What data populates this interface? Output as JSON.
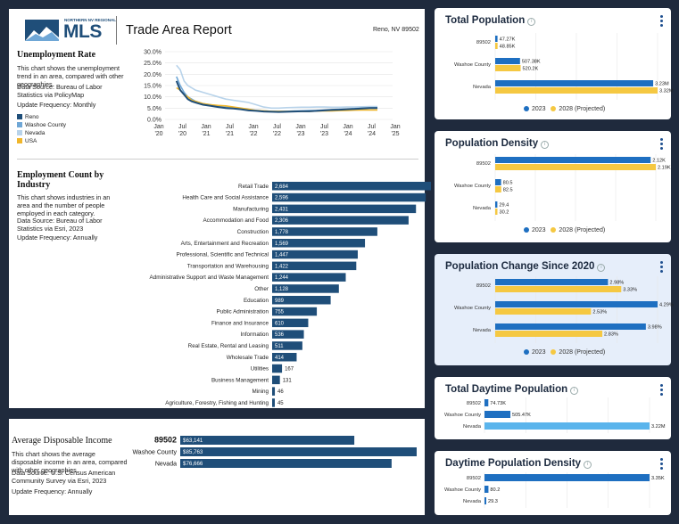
{
  "header": {
    "logo_small": "NORTHERN NV REGIONAL",
    "logo_text": "MLS",
    "title": "Trade Area Report",
    "location": "Reno, NV 89502"
  },
  "unemployment": {
    "title": "Unemployment Rate",
    "desc": "This chart shows the unemployment trend in an area, compared with other geographies.",
    "source": "Data Source: Bureau of Labor Statistics via PolicyMap",
    "freq": "Update Frequency: Monthly",
    "legend": [
      {
        "name": "Reno",
        "color": "#1f4e79"
      },
      {
        "name": "Washoe County",
        "color": "#6fa7d6"
      },
      {
        "name": "Nevada",
        "color": "#b8d3ea"
      },
      {
        "name": "USA",
        "color": "#f0b62b"
      }
    ]
  },
  "employment": {
    "title": "Employment Count by Industry",
    "desc": "This chart shows industries in an area and the number of people employed in each category.",
    "source": "Data Source: Bureau of Labor Statistics via Esri, 2023",
    "freq": "Update Frequency: Annually"
  },
  "income": {
    "title": "Average Disposable Income",
    "desc": "This chart shows the average disposable income in an area, compared with other geographies.",
    "source": "Data Source: U.S. Census American Community Survey via Esri, 2023",
    "freq": "Update Frequency: Annually"
  },
  "cards": {
    "legend_2023": "2023",
    "legend_2028": "2028 (Projected)",
    "total_population_title": "Total Population",
    "population_density_title": "Population Density",
    "population_change_title": "Population Change Since 2020",
    "daytime_population_title": "Total Daytime Population",
    "daytime_density_title": "Daytime Population Density"
  },
  "colors": {
    "dark_blue": "#1f4e79",
    "blue_2023": "#1e6fc1",
    "yellow_2028": "#f5c842",
    "light_blue": "#5ab4ec"
  },
  "chart_data": [
    {
      "id": "unemployment",
      "type": "line",
      "title": "Unemployment Rate",
      "x_ticks": [
        "Jan '20",
        "Jul '20",
        "Jan '21",
        "Jul '21",
        "Jan '22",
        "Jul '22",
        "Jan '23",
        "Jul '23",
        "Jan '24",
        "Jul '24",
        "Jan '25"
      ],
      "y_ticks": [
        "0.0%",
        "5.0%",
        "10.0%",
        "15.0%",
        "20.0%",
        "25.0%",
        "30.0%"
      ],
      "ylim": [
        0,
        30
      ],
      "xlim": [
        0,
        60
      ],
      "series": [
        {
          "name": "Reno",
          "x": [
            3,
            4,
            5,
            6,
            7,
            8,
            9,
            10,
            12,
            14,
            16,
            18,
            20,
            22,
            24,
            26,
            28,
            30,
            32,
            34,
            36,
            38,
            40,
            42,
            44,
            46,
            48,
            50,
            52,
            54,
            56
          ],
          "y": [
            17,
            13,
            11,
            9,
            8,
            7.5,
            7,
            6.5,
            6,
            5.5,
            5,
            4.8,
            4.5,
            4,
            3.8,
            3.5,
            3.4,
            3.3,
            3.4,
            3.5,
            3.6,
            3.6,
            3.8,
            4,
            4.2,
            4.3,
            4.5,
            4.6,
            4.8,
            5,
            5
          ]
        },
        {
          "name": "Washoe County",
          "x": [
            3,
            4,
            5,
            6,
            7,
            8,
            9,
            10,
            12,
            14,
            16,
            18,
            20,
            22,
            24,
            26,
            28,
            30,
            32,
            34,
            36,
            38,
            40,
            42,
            44,
            46,
            48,
            50,
            52,
            54,
            56
          ],
          "y": [
            19,
            15,
            12,
            10,
            9,
            8,
            7.5,
            7,
            6.5,
            6,
            5.5,
            5,
            4.7,
            4.2,
            4,
            3.8,
            3.6,
            3.5,
            3.6,
            3.7,
            3.8,
            3.9,
            4,
            4.2,
            4.4,
            4.5,
            4.6,
            4.8,
            5,
            5.1,
            5.2
          ]
        },
        {
          "name": "Nevada",
          "x": [
            3,
            4,
            5,
            6,
            7,
            8,
            9,
            10,
            12,
            14,
            16,
            18,
            20,
            22,
            24,
            26,
            28,
            30,
            32,
            34,
            36,
            38,
            40,
            42,
            44,
            46,
            48,
            50,
            52,
            54,
            56
          ],
          "y": [
            24,
            22,
            17,
            15,
            14,
            13,
            12.5,
            12,
            11,
            10,
            9,
            8.5,
            8,
            7.5,
            6.5,
            5.5,
            5,
            5,
            5.2,
            5.3,
            5.4,
            5.4,
            5.5,
            5.5,
            5.4,
            5.4,
            5.5,
            5.5,
            5.6,
            5.7,
            5.7
          ]
        },
        {
          "name": "USA",
          "x": [
            3,
            4,
            5,
            6,
            7,
            8,
            9,
            10,
            12,
            14,
            16,
            18,
            20,
            22,
            24,
            26,
            28,
            30,
            32,
            34,
            36,
            38,
            40,
            42,
            44,
            46,
            48,
            50,
            52,
            54,
            56
          ],
          "y": [
            14,
            13,
            11,
            10,
            8.5,
            8,
            7.5,
            7,
            6.5,
            6.2,
            6,
            5.5,
            5,
            4.5,
            4,
            3.8,
            3.6,
            3.6,
            3.5,
            3.5,
            3.6,
            3.6,
            3.7,
            3.8,
            3.8,
            3.9,
            4,
            4.1,
            4.2,
            4.2,
            4.2
          ]
        }
      ]
    },
    {
      "id": "employment",
      "type": "bar",
      "title": "Employment Count by Industry",
      "categories": [
        "Retail Trade",
        "Health Care and Social Assistance",
        "Manufacturing",
        "Accommodation and Food",
        "Construction",
        "Arts, Entertainment and Recreation",
        "Professional, Scientific and Technical",
        "Transportation and Warehousing",
        "Administrative Support and Waste Management",
        "Other",
        "Education",
        "Public Administration",
        "Finance and Insurance",
        "Information",
        "Real Estate, Rental and Leasing",
        "Wholesale Trade",
        "Utilities",
        "Business Management",
        "Mining",
        "Agriculture, Forestry, Fishing and Hunting"
      ],
      "values": [
        2684,
        2596,
        2431,
        2306,
        1778,
        1569,
        1447,
        1422,
        1244,
        1128,
        989,
        755,
        610,
        536,
        511,
        414,
        167,
        131,
        46,
        45
      ],
      "labels": [
        "2,684",
        "2,596",
        "2,431",
        "2,306",
        "1,778",
        "1,569",
        "1,447",
        "1,422",
        "1,244",
        "1,128",
        "989",
        "755",
        "610",
        "536",
        "511",
        "414",
        "167",
        "131",
        "46",
        "45"
      ]
    },
    {
      "id": "income",
      "type": "bar",
      "title": "Average Disposable Income",
      "categories": [
        "89502",
        "Washoe County",
        "Nevada"
      ],
      "values": [
        63141,
        85763,
        76666
      ],
      "labels": [
        "$63,141",
        "$85,763",
        "$76,666"
      ]
    },
    {
      "id": "total_population",
      "type": "bar",
      "title": "Total Population",
      "categories": [
        "89502",
        "Washoe County",
        "Nevada"
      ],
      "series": [
        {
          "name": "2023",
          "values": [
            47270,
            507380,
            3230000
          ],
          "labels": [
            "47.27K",
            "507.38K",
            "3.23M"
          ]
        },
        {
          "name": "2028 (Projected)",
          "values": [
            48850,
            520200,
            3320000
          ],
          "labels": [
            "48.85K",
            "520.2K",
            "3.32M"
          ]
        }
      ]
    },
    {
      "id": "population_density",
      "type": "bar",
      "title": "Population Density",
      "categories": [
        "89502",
        "Washoe County",
        "Nevada"
      ],
      "series": [
        {
          "name": "2023",
          "values": [
            2120,
            80.5,
            29.4
          ],
          "labels": [
            "2.12K",
            "80.5",
            "29.4"
          ]
        },
        {
          "name": "2028 (Projected)",
          "values": [
            2190,
            82.5,
            30.2
          ],
          "labels": [
            "2.19K",
            "82.5",
            "30.2"
          ]
        }
      ]
    },
    {
      "id": "population_change",
      "type": "bar",
      "title": "Population Change Since 2020",
      "categories": [
        "89502",
        "Washoe County",
        "Nevada"
      ],
      "series": [
        {
          "name": "2023",
          "values": [
            2.98,
            4.29,
            3.98
          ],
          "labels": [
            "2.98%",
            "4.29%",
            "3.98%"
          ]
        },
        {
          "name": "2028 (Projected)",
          "values": [
            3.33,
            2.53,
            2.83
          ],
          "labels": [
            "3.33%",
            "2.53%",
            "2.83%"
          ]
        }
      ]
    },
    {
      "id": "daytime_population",
      "type": "bar",
      "title": "Total Daytime Population",
      "categories": [
        "89502",
        "Washoe County",
        "Nevada"
      ],
      "values": [
        74730,
        505470,
        3220000
      ],
      "labels": [
        "74.73K",
        "505.47K",
        "3.22M"
      ]
    },
    {
      "id": "daytime_density",
      "type": "bar",
      "title": "Daytime Population Density",
      "categories": [
        "89502",
        "Washoe County",
        "Nevada"
      ],
      "values": [
        3350,
        80.2,
        29.3
      ],
      "labels": [
        "3.35K",
        "80.2",
        "29.3"
      ]
    }
  ]
}
